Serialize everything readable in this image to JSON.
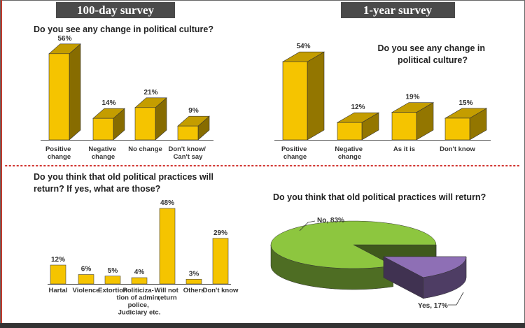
{
  "headers": [
    "100-day survey",
    "1-year survey"
  ],
  "chart_data": [
    {
      "type": "bar3d",
      "title": "Do you see any change in political culture?",
      "categories": [
        "Positive change",
        "Negative change",
        "No change",
        "Don't know/ Can't say"
      ],
      "values": [
        56,
        14,
        21,
        9
      ],
      "value_labels": [
        "56%",
        "14%",
        "21%",
        "9%"
      ],
      "color": "#f5c400"
    },
    {
      "type": "bar3d",
      "title": "Do you see any change in political culture?",
      "categories": [
        "Positive change",
        "Negative change",
        "As it is",
        "Don't know"
      ],
      "values": [
        54,
        12,
        19,
        15
      ],
      "value_labels": [
        "54%",
        "12%",
        "19%",
        "15%"
      ],
      "color": "#f5c400"
    },
    {
      "type": "bar",
      "title": "Do you think that old political practices will return? If yes, what are those?",
      "categories": [
        "Hartal",
        "Violence",
        "Extortion",
        "Politiciza- tion of admin, police, Judiciary etc.",
        "Will not return",
        "Others",
        "Don't know"
      ],
      "values": [
        12,
        6,
        5,
        4,
        48,
        3,
        29
      ],
      "value_labels": [
        "12%",
        "6%",
        "5%",
        "4%",
        "48%",
        "3%",
        "29%"
      ],
      "color": "#f5c400"
    },
    {
      "type": "pie3d",
      "title": "Do you think that old political practices will return?",
      "categories": [
        "No",
        "Yes"
      ],
      "values": [
        83,
        17
      ],
      "value_labels": [
        "No, 83%",
        "Yes, 17%"
      ],
      "colors": [
        "#8dc63f",
        "#8e6fb5"
      ]
    }
  ]
}
